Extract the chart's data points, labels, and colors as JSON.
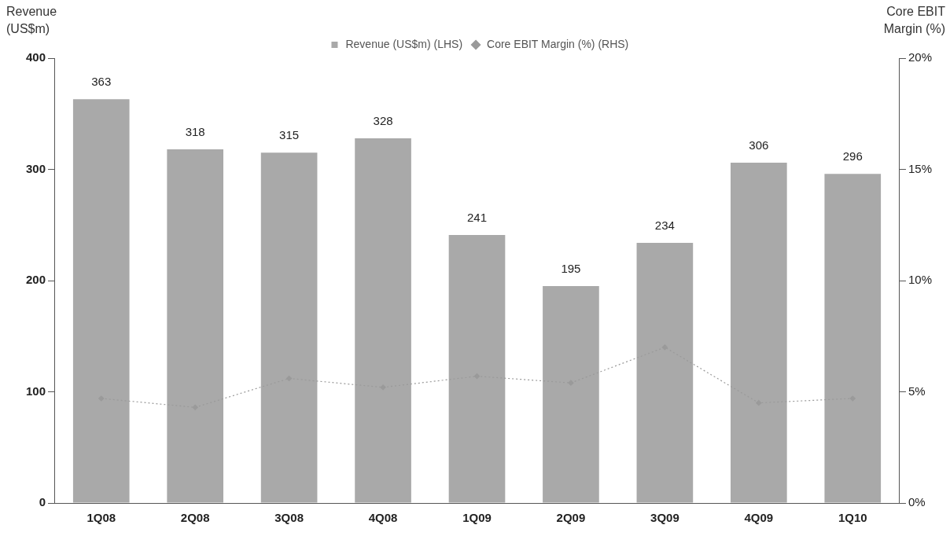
{
  "chart_data": {
    "type": "bar",
    "ylabel": "Revenue (US$m)",
    "y2label": "Core EBIT Margin (%)",
    "categories": [
      "1Q08",
      "2Q08",
      "3Q08",
      "4Q08",
      "1Q09",
      "2Q09",
      "3Q09",
      "4Q09",
      "1Q10"
    ],
    "series": [
      {
        "name": "Revenue (US$m) (LHS)",
        "color": "#a9a9a9",
        "values": [
          363,
          318,
          315,
          328,
          241,
          195,
          234,
          306,
          296
        ],
        "data_labels": true
      },
      {
        "name": "Core EBIT Margin (%) (RHS)",
        "type": "line",
        "axis": "y2",
        "color": "#9a9a9a",
        "values": [
          4.7,
          4.3,
          5.6,
          5.2,
          5.7,
          5.4,
          7.0,
          4.5,
          4.7
        ],
        "marker": "diamond",
        "line_style": "dotted"
      }
    ],
    "ylim": [
      0,
      400
    ],
    "yticks": [
      0,
      100,
      200,
      300,
      400
    ],
    "y2lim": [
      0,
      20
    ],
    "y2ticks": [
      {
        "value": 0,
        "label": "0%"
      },
      {
        "value": 5,
        "label": "5%"
      },
      {
        "value": 10,
        "label": "10%"
      },
      {
        "value": 15,
        "label": "15%"
      },
      {
        "value": 20,
        "label": "20%"
      }
    ],
    "grid": false,
    "legend": "top"
  }
}
